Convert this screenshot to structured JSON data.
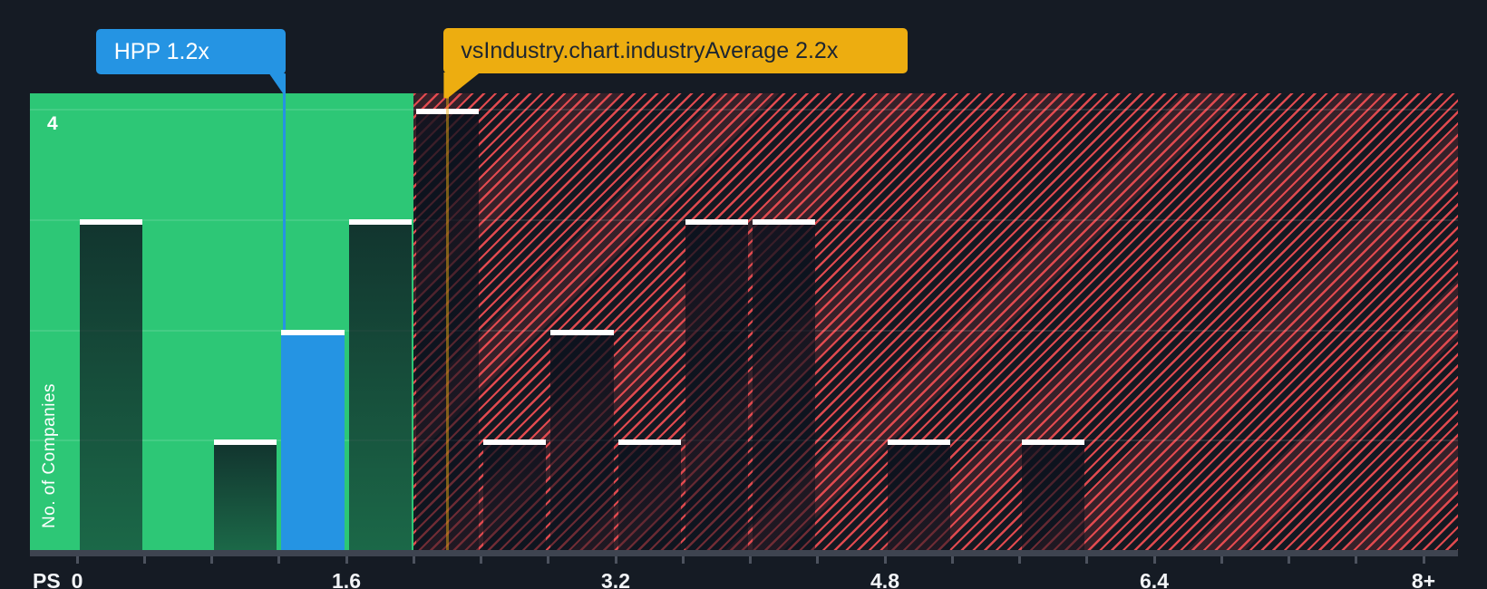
{
  "tooltips": {
    "company": {
      "label": "HPP 1.2x"
    },
    "industry": {
      "label": "vsIndustry.chart.industryAverage 2.2x"
    }
  },
  "chart_data": {
    "type": "bar",
    "subtype": "histogram",
    "xlabel": "PS",
    "ylabel": "No. of Companies",
    "bin_width": 0.4,
    "bin_start": 0,
    "counts": [
      3,
      0,
      1,
      2,
      3,
      4,
      1,
      2,
      1,
      3,
      3,
      0,
      1,
      0,
      1,
      0,
      0,
      0,
      0,
      0
    ],
    "highlight_bin_index": 3,
    "highlight_label": "HPP 1.2x",
    "markers": {
      "company": {
        "label": "HPP",
        "value": 1.2
      },
      "industry": {
        "label": "vsIndustry.chart.industryAverage",
        "value": 2.2
      }
    },
    "zones": {
      "below_average_max": 2.0,
      "above_average_max": 8.2
    },
    "x_tick_labels": [
      {
        "value": 0,
        "label": "0"
      },
      {
        "value": 1.6,
        "label": "1.6"
      },
      {
        "value": 3.2,
        "label": "3.2"
      },
      {
        "value": 4.8,
        "label": "4.8"
      },
      {
        "value": 6.4,
        "label": "6.4"
      },
      {
        "value": 8,
        "label": "8+"
      }
    ],
    "x_minor_tick_step": 0.4,
    "y_tick_label": "4",
    "ylim": [
      0,
      4.14
    ],
    "xlim": [
      0,
      8.2
    ],
    "grid": true,
    "colors": {
      "background": "#151b24",
      "below_zone_green": "#2dc776",
      "hatch_red": "#e04a4f",
      "bar_white_cap": "#ffffff",
      "highlight_blue": "#2594e3",
      "industry_yellow": "#edad10",
      "axis_gray": "#3e4450"
    }
  }
}
